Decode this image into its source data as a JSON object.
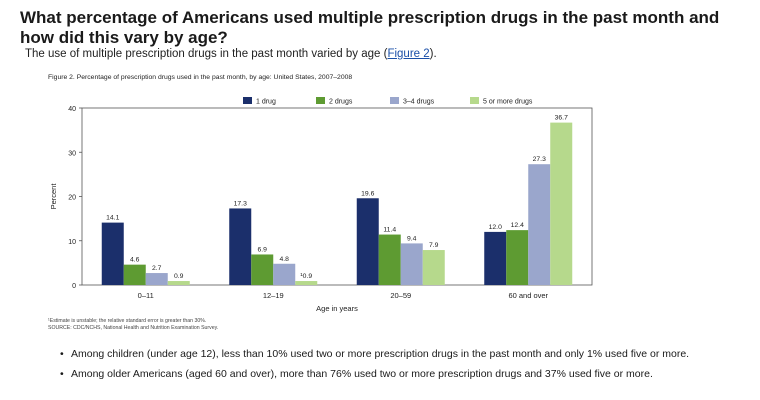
{
  "heading": "What percentage of Americans used multiple prescription drugs in the past month and how did this vary by age?",
  "subline": {
    "text": "The use of multiple prescription drugs in the past month varied by age (",
    "link": "Figure 2",
    "after": ")."
  },
  "figure": {
    "title": "Figure 2. Percentage of prescription drugs used in the past month, by age: United States, 2007–2008",
    "footnote_1": "¹Estimate is unstable; the relative standard error is greater than 30%.",
    "footnote_2": "SOURCE: CDC/NCHS, National Health and Nutrition Examination Survey."
  },
  "chart_data": {
    "type": "bar",
    "title": "Figure 2. Percentage of prescription drugs used in the past month, by age: United States, 2007–2008",
    "xlabel": "Age in years",
    "ylabel": "Percent",
    "ylim": [
      0,
      40
    ],
    "yticks": [
      0,
      10,
      20,
      30,
      40
    ],
    "categories": [
      "0–11",
      "12–19",
      "20–59",
      "60 and over"
    ],
    "legend_position": "top-right",
    "series": [
      {
        "name": "1 drug",
        "color": "#1b2f6b",
        "values": [
          14.1,
          17.3,
          19.6,
          12.0
        ],
        "labels": [
          "14.1",
          "17.3",
          "19.6",
          "12.0"
        ]
      },
      {
        "name": "2 drugs",
        "color": "#5e9b32",
        "values": [
          4.6,
          6.9,
          11.4,
          12.4
        ],
        "labels": [
          "4.6",
          "6.9",
          "11.4",
          "12.4"
        ]
      },
      {
        "name": "3–4 drugs",
        "color": "#9aa6cc",
        "values": [
          2.7,
          4.8,
          9.4,
          27.3
        ],
        "labels": [
          "2.7",
          "4.8",
          "9.4",
          "27.3"
        ]
      },
      {
        "name": "5 or more drugs",
        "color": "#b6d98c",
        "values": [
          0.9,
          0.9,
          7.9,
          36.7
        ],
        "labels": [
          "0.9",
          "¹0.9",
          "7.9",
          "36.7"
        ]
      }
    ]
  },
  "bullets": [
    "Among children (under age 12), less than 10% used two or more prescription drugs in the past month and only 1% used five or more.",
    "Among older Americans (aged 60 and over), more than 76% used two or more prescription drugs and 37% used five or more."
  ]
}
